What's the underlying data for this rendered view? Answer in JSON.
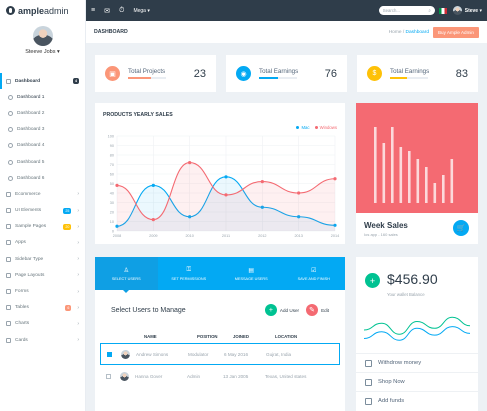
{
  "brand": {
    "bold": "ample",
    "light": "admin"
  },
  "profile": {
    "name": "Steeve Jobs",
    "caret": "▾"
  },
  "sidebar": {
    "items": [
      {
        "label": "Dashboard",
        "badge": "4",
        "active": true,
        "icon": "gauge-icon"
      },
      {
        "label": "Dashboard 1",
        "sub": true,
        "active_sub": true
      },
      {
        "label": "Dashboard 2",
        "sub": true
      },
      {
        "label": "Dashboard 3",
        "sub": true
      },
      {
        "label": "Dashboard 4",
        "sub": true
      },
      {
        "label": "Dashboard 5",
        "sub": true
      },
      {
        "label": "Dashboard 6",
        "sub": true
      },
      {
        "label": "Ecommerce",
        "chevron": true,
        "icon": "cart-icon"
      },
      {
        "label": "UI Elements",
        "badge": "25",
        "badge_type": "info",
        "chevron": true,
        "icon": "layers-icon"
      },
      {
        "label": "Sample Pages",
        "badge": "20",
        "badge_type": "warn",
        "chevron": true,
        "icon": "pages-icon"
      },
      {
        "label": "Apps",
        "chevron": true,
        "icon": "apps-icon"
      },
      {
        "label": "Sidebar Type",
        "chevron": true,
        "icon": "sidebar-icon"
      },
      {
        "label": "Page Layouts",
        "chevron": true,
        "icon": "layout-icon"
      },
      {
        "label": "Forms",
        "chevron": true,
        "icon": "forms-icon"
      },
      {
        "label": "Tables",
        "badge": "6",
        "badge_type": "danger",
        "chevron": true,
        "icon": "table-icon"
      },
      {
        "label": "Charts",
        "chevron": true,
        "icon": "chart-icon"
      },
      {
        "label": "Cards",
        "chevron": true,
        "icon": "card-icon"
      }
    ]
  },
  "topbar": {
    "mega": "Mega",
    "mega_caret": "▾",
    "search_placeholder": "Search...",
    "user": "Steve",
    "user_caret": "▾"
  },
  "pagebar": {
    "title": "DASHBOARD",
    "crumb_home": "Home",
    "crumb_sep": "/",
    "crumb_current": "Dashboard",
    "buy": "Buy Ample Admin"
  },
  "stats": [
    {
      "label": "Total Projects",
      "value": "23",
      "color": "#fb9678",
      "progress": 0.6
    },
    {
      "label": "Total Earnings",
      "value": "76",
      "color": "#03a9f3",
      "progress": 0.5
    },
    {
      "label": "Total Earnings",
      "value": "83",
      "color": "#fec107",
      "progress": 0.45
    }
  ],
  "chart_data": {
    "type": "line",
    "title": "PRODUCTS YEARLY SALES",
    "x": [
      "2008",
      "2009",
      "2010",
      "2011",
      "2012",
      "2013",
      "2014"
    ],
    "ylim": [
      0,
      100
    ],
    "yticks": [
      0,
      10,
      20,
      30,
      40,
      50,
      60,
      70,
      80,
      90,
      100
    ],
    "series": [
      {
        "name": "Mac",
        "color": "#03a9f3",
        "fill": "rgba(3,169,243,0.08)",
        "values": [
          5,
          48,
          15,
          57,
          25,
          15,
          6
        ]
      },
      {
        "name": "Windows",
        "color": "#f46a72",
        "fill": "rgba(244,106,114,0.10)",
        "values": [
          48,
          12,
          72,
          38,
          52,
          40,
          55
        ]
      }
    ],
    "grid": true,
    "legend": "top-right"
  },
  "week_sales": {
    "title": "Week Sales",
    "subtitle": "Ios app - 160 sales",
    "bars": [
      95,
      75,
      95,
      70,
      65,
      55,
      45,
      25,
      35,
      55
    ]
  },
  "users": {
    "tabs": [
      "SELECT USERS",
      "SET PERMISSIONS",
      "MESSAGE USERS",
      "SAVE AND FINISH"
    ],
    "title": "Select Users to Manage",
    "add_label": "Add User",
    "edit_label": "Edit",
    "columns": [
      "NAME",
      "POSITION",
      "JOINED",
      "LOCATION"
    ],
    "rows": [
      {
        "name": "Andrew Simons",
        "position": "Modulator",
        "joined": "6 May 2016",
        "location": "Gujrat, India",
        "selected": true
      },
      {
        "name": "Hanna Gover",
        "position": "Admin",
        "joined": "13 Jan 2005",
        "location": "Texas, United states",
        "selected": false
      }
    ]
  },
  "balance": {
    "amount": "$456.90",
    "subtitle": "Your wallet Balance",
    "series_green": [
      20,
      28,
      15,
      30,
      22,
      35,
      25
    ],
    "series_blue": [
      10,
      18,
      8,
      22,
      14,
      24,
      16
    ],
    "actions": [
      "Withdrow money",
      "Shop Now",
      "Add funds"
    ]
  }
}
